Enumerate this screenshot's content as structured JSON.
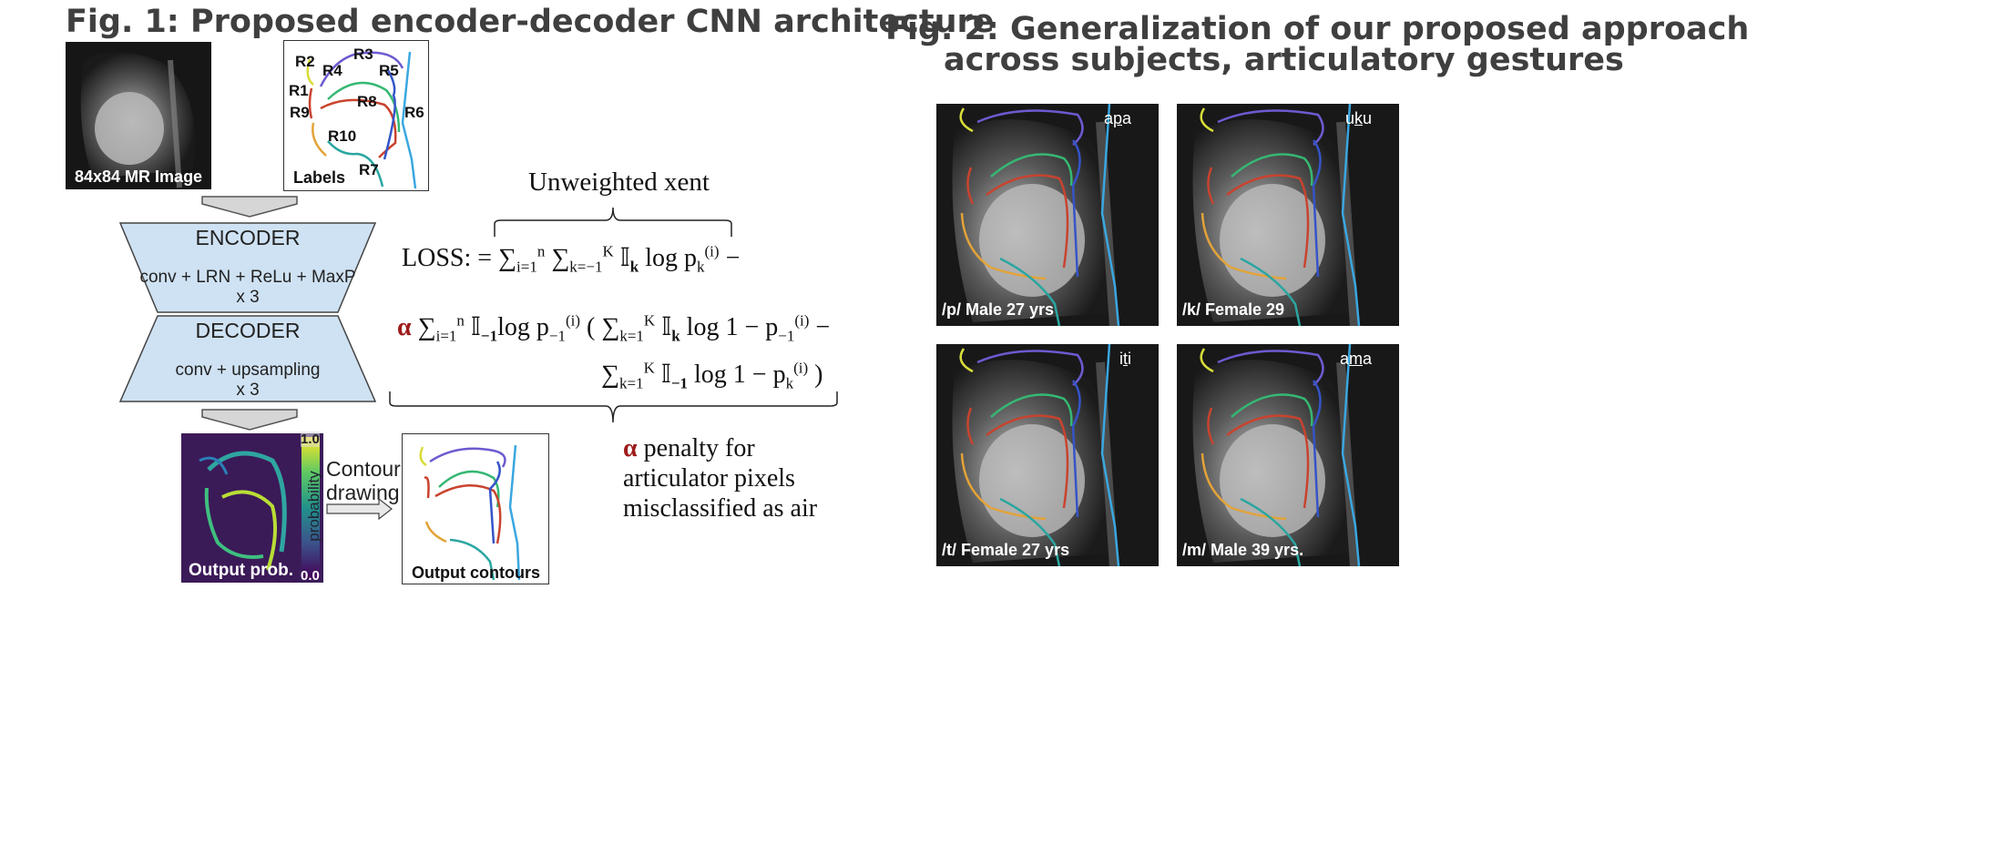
{
  "fig1": {
    "title": "Fig. 1: Proposed encoder-decoder CNN architecture",
    "mr_image_label": "84x84 MR Image",
    "labels_caption": "Labels",
    "region_labels": [
      "R1",
      "R2",
      "R3",
      "R4",
      "R5",
      "R6",
      "R7",
      "R8",
      "R9",
      "R10"
    ],
    "encoder": {
      "title": "ENCODER",
      "line1": "conv + LRN + ReLu + MaxP",
      "line2": "x 3"
    },
    "decoder": {
      "title": "DECODER",
      "line1": "conv + upsampling",
      "line2": "x 3"
    },
    "output_prob_label": "Output prob.",
    "colorbar": {
      "max": "1.0",
      "min": "0.0",
      "label": "probability"
    },
    "contour_drawing": [
      "Contour",
      "drawing"
    ],
    "output_contours_label": "Output contours",
    "loss": {
      "unweighted_label": "Unweighted xent",
      "prefix": "LOSS:",
      "alpha": "α",
      "penalty_label": [
        "penalty for",
        "articulator pixels",
        "misclassified as air"
      ]
    }
  },
  "fig2": {
    "title_line1": "Fig. 2: Generalization of our proposed approach",
    "title_line2": "across subjects, articulatory gestures",
    "panels": [
      {
        "caption": "/p/ Male 27 yrs",
        "word_pre": "a",
        "word_mid": "p",
        "word_post": "a"
      },
      {
        "caption": "/k/ Female 29",
        "word_pre": "u",
        "word_mid": "k",
        "word_post": "u"
      },
      {
        "caption": "/t/ Female 27 yrs",
        "word_pre": "i",
        "word_mid": "t",
        "word_post": "i"
      },
      {
        "caption": "/m/ Male 39 yrs.",
        "word_pre": "a",
        "word_mid": "m",
        "word_post": "a"
      }
    ]
  },
  "colors": {
    "trapezoid_fill": "#cfe2f3",
    "arrow_fill": "#d6d6d6",
    "alpha_red": "#9e1b1b",
    "contour_yellow": "#d8dc3a",
    "contour_purple": "#6b5bd0",
    "contour_blue": "#3554c8",
    "contour_cyan": "#3aa7e0",
    "contour_green": "#35b873",
    "contour_red": "#c9432e",
    "contour_orange": "#e3a338",
    "contour_teal": "#2aa6a0"
  }
}
